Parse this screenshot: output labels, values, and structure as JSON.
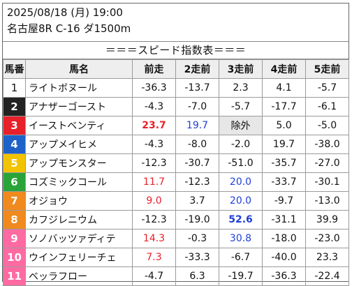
{
  "header": {
    "date_line": "2025/08/18 (月) 19:00",
    "race_line": "名古屋8R C-16 ダ1500m"
  },
  "banner": "＝＝＝スピード指数表＝＝＝",
  "columns": [
    "馬番",
    "馬名",
    "前走",
    "2走前",
    "3走前",
    "4走前",
    "5走前"
  ],
  "rows": [
    {
      "num": "1",
      "name": "ライトボヌール",
      "v1": "-36.3",
      "v2": "-13.7",
      "v3": "2.3",
      "v4": "4.1",
      "v5": "-5.7"
    },
    {
      "num": "2",
      "name": "アナザーゴースト",
      "v1": "-4.3",
      "v2": "-7.0",
      "v3": "-5.7",
      "v4": "-17.7",
      "v5": "-6.1"
    },
    {
      "num": "3",
      "name": "イーストベンティ",
      "v1": "23.7",
      "v2": "19.7",
      "v3": "除外",
      "v4": "5.0",
      "v5": "-5.0"
    },
    {
      "num": "4",
      "name": "アップメイヒメ",
      "v1": "-4.3",
      "v2": "-8.0",
      "v3": "-2.0",
      "v4": "19.7",
      "v5": "-38.0"
    },
    {
      "num": "5",
      "name": "アップモンスター",
      "v1": "-12.3",
      "v2": "-30.7",
      "v3": "-51.0",
      "v4": "-35.7",
      "v5": "-27.0"
    },
    {
      "num": "6",
      "name": "コズミックコール",
      "v1": "11.7",
      "v2": "-12.3",
      "v3": "20.0",
      "v4": "-33.7",
      "v5": "-30.1"
    },
    {
      "num": "7",
      "name": "オジョウ",
      "v1": "9.0",
      "v2": "3.7",
      "v3": "20.0",
      "v4": "-9.7",
      "v5": "-13.0"
    },
    {
      "num": "8",
      "name": "カフジレニウム",
      "v1": "-12.3",
      "v2": "-19.0",
      "v3": "52.6",
      "v4": "-31.1",
      "v5": "39.9"
    },
    {
      "num": "9",
      "name": "ソノバッツァディテ",
      "v1": "14.3",
      "v2": "-0.3",
      "v3": "30.8",
      "v4": "-18.0",
      "v5": "-23.0"
    },
    {
      "num": "10",
      "name": "ウインフェリーチェ",
      "v1": "7.3",
      "v2": "-33.3",
      "v3": "-6.7",
      "v4": "-40.0",
      "v5": "23.3"
    },
    {
      "num": "11",
      "name": "ベッラフロー",
      "v1": "-4.7",
      "v2": "6.3",
      "v3": "-19.7",
      "v4": "-36.3",
      "v5": "-22.4"
    }
  ],
  "styles": {
    "frame_colors": [
      "#ffffff",
      "#222222",
      "#e8202a",
      "#1e62c9",
      "#f2c300",
      "#2aa438",
      "#f08a1f",
      "#f08a1f",
      "#ff6aa2",
      "#ff6aa2",
      "#ff6aa2"
    ],
    "frame_text": [
      "#111111",
      "#ffffff",
      "#ffffff",
      "#ffffff",
      "#ffffff",
      "#ffffff",
      "#ffffff",
      "#ffffff",
      "#ffffff",
      "#ffffff",
      "#ffffff"
    ],
    "red": "#e8202a",
    "blue": "#1f3fd6",
    "highlights": {
      "r3v1": "red-bold",
      "r3v2": "blue",
      "r3v3": "gray",
      "r6v1": "red",
      "r6v3": "blue",
      "r7v1": "red",
      "r7v3": "blue",
      "r8v3": "blue-bold",
      "r9v1": "red",
      "r9v3": "blue",
      "r10v1": "red"
    }
  }
}
